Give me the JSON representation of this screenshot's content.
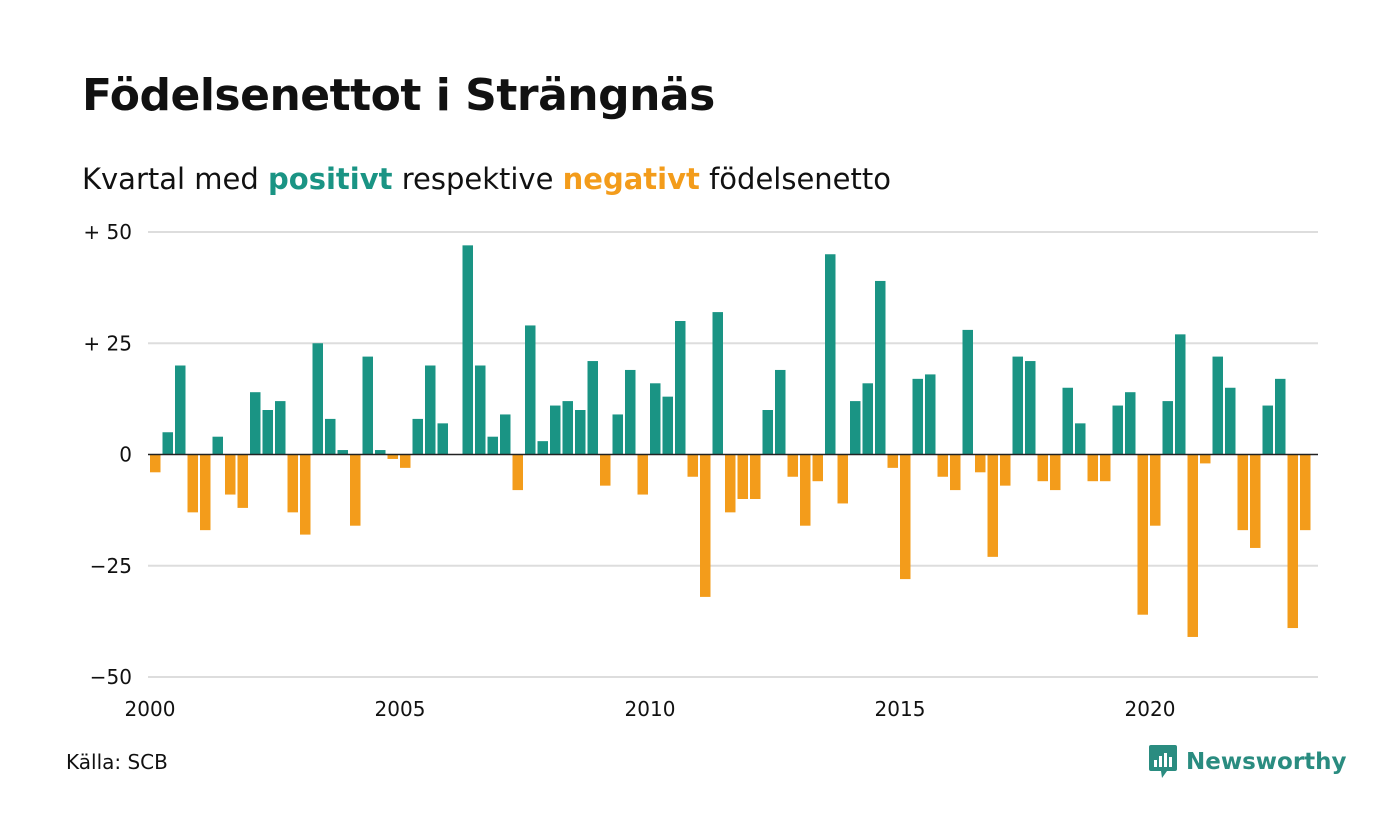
{
  "title": "Födelsenettot i Strängnäs",
  "subtitle": {
    "before": "Kvartal med ",
    "positive": "positivt",
    "middle": " respektive ",
    "negative": "negativt",
    "after": " födelsenetto"
  },
  "source": "Källa: SCB",
  "logo": {
    "text": "Newsworthy",
    "icon": "newsworthy-logo-icon"
  },
  "colors": {
    "positive": "#1a9484",
    "negative": "#f39c1b",
    "grid": "#dddddd",
    "logo": "#2a8c80"
  },
  "chart_data": {
    "type": "bar",
    "title": "Födelsenettot i Strängnäs",
    "subtitle": "Kvartal med positivt respektive negativt födelsenetto",
    "xlabel": "",
    "ylabel": "",
    "x_start": 2000,
    "periods_per_year": 4,
    "xlim": [
      2000,
      2023.25
    ],
    "x_ticks": [
      2000,
      2005,
      2010,
      2015,
      2020
    ],
    "x_tick_labels": [
      "2000",
      "2005",
      "2010",
      "2015",
      "2020"
    ],
    "ylim": [
      -50,
      50
    ],
    "y_ticks": [
      -50,
      -25,
      0,
      25,
      50
    ],
    "y_tick_labels": [
      "−50",
      "−25",
      "0",
      "+ 25",
      "+ 50"
    ],
    "grid": true,
    "values": [
      -4,
      5,
      20,
      -13,
      -17,
      4,
      -9,
      -12,
      14,
      10,
      12,
      -13,
      -18,
      25,
      8,
      1,
      -16,
      22,
      1,
      -1,
      -3,
      8,
      20,
      7,
      0,
      47,
      20,
      4,
      9,
      -8,
      29,
      3,
      11,
      12,
      10,
      21,
      -7,
      9,
      19,
      -9,
      16,
      13,
      30,
      -5,
      -32,
      32,
      -13,
      -10,
      -10,
      10,
      19,
      -5,
      -16,
      -6,
      45,
      -11,
      12,
      16,
      39,
      -3,
      -28,
      17,
      18,
      -5,
      -8,
      28,
      -4,
      -23,
      -7,
      22,
      21,
      -6,
      -8,
      15,
      7,
      -6,
      -6,
      11,
      14,
      -36,
      -16,
      12,
      27,
      -41,
      -2,
      22,
      15,
      -17,
      -21,
      11,
      17,
      -39,
      -17
    ]
  }
}
